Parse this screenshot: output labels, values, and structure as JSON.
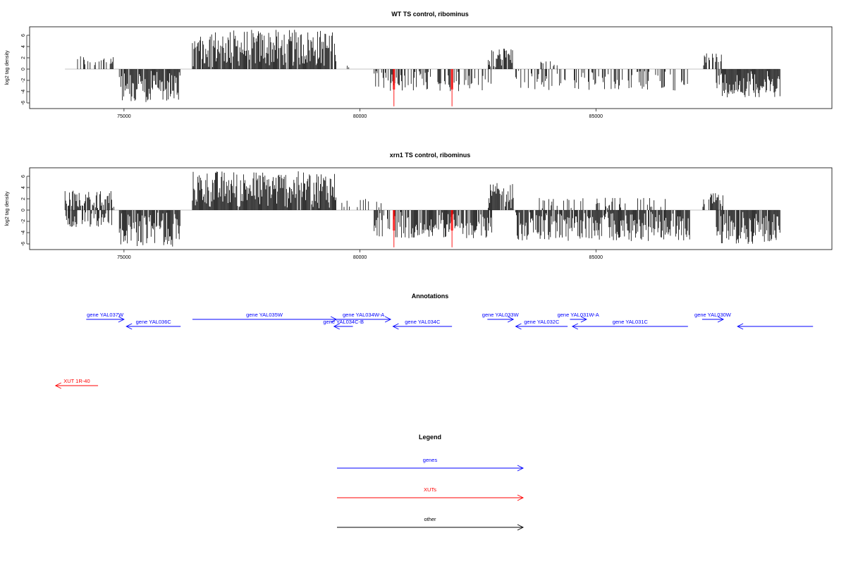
{
  "chart_data": [
    {
      "type": "bar",
      "title": "WT TS control, ribominus",
      "ylabel": "log2 tag density",
      "xlim": [
        73000,
        90000
      ],
      "ylim": [
        -7,
        7.5
      ],
      "xticks": [
        75000,
        80000,
        85000
      ],
      "yticks": [
        -6,
        -4,
        -2,
        0,
        2,
        4,
        6
      ],
      "ytick_labels": [
        "-6",
        "-4",
        "-2",
        "0",
        "2",
        "4",
        "6"
      ],
      "series": [
        {
          "strand": "plus",
          "color": "#000000",
          "segments": [
            {
              "from": 74000,
              "to": 74800,
              "max": 2.5,
              "density": 0.35
            },
            {
              "from": 76450,
              "to": 79500,
              "max": 7,
              "density": 0.95
            },
            {
              "from": 79700,
              "to": 80000,
              "max": 2,
              "density": 0.2
            },
            {
              "from": 82700,
              "to": 83250,
              "max": 4,
              "density": 0.8
            },
            {
              "from": 83800,
              "to": 84300,
              "max": 1.5,
              "density": 0.25
            },
            {
              "from": 87250,
              "to": 87700,
              "max": 2.8,
              "density": 0.7
            }
          ]
        },
        {
          "strand": "minus",
          "color": "#000000",
          "segments": [
            {
              "from": 74900,
              "to": 76200,
              "max": 6,
              "density": 0.9
            },
            {
              "from": 80300,
              "to": 82800,
              "max": 4,
              "density": 0.45
            },
            {
              "from": 83300,
              "to": 87000,
              "max": 3.8,
              "density": 0.3
            },
            {
              "from": 87550,
              "to": 88900,
              "max": 5,
              "density": 0.95
            }
          ]
        }
      ],
      "highlights": [
        {
          "x": 80720,
          "value": -6.6,
          "color": "#ff0000"
        },
        {
          "x": 81950,
          "value": -6.6,
          "color": "#ff0000"
        }
      ]
    },
    {
      "type": "bar",
      "title": "xrn1 TS control, ribominus",
      "ylabel": "log2 tag density",
      "xlim": [
        73000,
        90000
      ],
      "ylim": [
        -7,
        7.5
      ],
      "xticks": [
        75000,
        80000,
        85000
      ],
      "yticks": [
        -6,
        -4,
        -2,
        0,
        2,
        4,
        6
      ],
      "ytick_labels": [
        "-6",
        "-4",
        "-2",
        "0",
        "2",
        "4",
        "6"
      ],
      "series": [
        {
          "strand": "plus",
          "color": "#000000",
          "segments": [
            {
              "from": 73750,
              "to": 74800,
              "max": 3.5,
              "density": 0.8
            },
            {
              "from": 76450,
              "to": 79500,
              "max": 7,
              "density": 0.98
            },
            {
              "from": 79600,
              "to": 80500,
              "max": 2,
              "density": 0.2
            },
            {
              "from": 82700,
              "to": 83250,
              "max": 4.8,
              "density": 0.9
            },
            {
              "from": 83800,
              "to": 86500,
              "max": 2.2,
              "density": 0.2
            },
            {
              "from": 87250,
              "to": 87700,
              "max": 3,
              "density": 0.7
            }
          ]
        },
        {
          "strand": "minus",
          "color": "#000000",
          "segments": [
            {
              "from": 73750,
              "to": 74800,
              "max": 3,
              "density": 0.6
            },
            {
              "from": 74900,
              "to": 76200,
              "max": 6.5,
              "density": 0.95
            },
            {
              "from": 80300,
              "to": 82800,
              "max": 5,
              "density": 0.75
            },
            {
              "from": 83300,
              "to": 87000,
              "max": 5.5,
              "density": 0.9
            },
            {
              "from": 87550,
              "to": 88900,
              "max": 6,
              "density": 0.95
            }
          ]
        }
      ],
      "highlights": [
        {
          "x": 80720,
          "value": -6.6,
          "color": "#ff0000"
        },
        {
          "x": 81950,
          "value": -6.6,
          "color": "#ff0000"
        }
      ]
    }
  ],
  "annotations": {
    "title": "Annotations",
    "genes_color": "#0000ff",
    "xut_color": "#ff0000",
    "items": [
      {
        "label": "gene YAL037W",
        "start": 74200,
        "end": 75000,
        "strand": "+",
        "row": 0,
        "type": "gene"
      },
      {
        "label": "gene YAL036C",
        "start": 75050,
        "end": 76200,
        "strand": "-",
        "row": 1,
        "type": "gene"
      },
      {
        "label": "gene YAL035W",
        "start": 76450,
        "end": 79500,
        "strand": "+",
        "row": 0,
        "type": "gene"
      },
      {
        "label": "gene YAL034W-A",
        "start": 79500,
        "end": 80650,
        "strand": "+",
        "row": 0,
        "type": "gene"
      },
      {
        "label": "gene YAL034C-B",
        "start": 79450,
        "end": 79850,
        "strand": "-",
        "row": 1,
        "type": "gene"
      },
      {
        "label": "gene YAL034C",
        "start": 80700,
        "end": 81950,
        "strand": "-",
        "row": 1,
        "type": "gene"
      },
      {
        "label": "gene YAL033W",
        "start": 82700,
        "end": 83250,
        "strand": "+",
        "row": 0,
        "type": "gene"
      },
      {
        "label": "gene YAL032C",
        "start": 83300,
        "end": 84400,
        "strand": "-",
        "row": 1,
        "type": "gene"
      },
      {
        "label": "gene YAL031W-A",
        "start": 84450,
        "end": 84800,
        "strand": "+",
        "row": 0,
        "type": "gene"
      },
      {
        "label": "gene YAL031C",
        "start": 84500,
        "end": 86950,
        "strand": "-",
        "row": 1,
        "type": "gene"
      },
      {
        "label": "gene YAL030W",
        "start": 87250,
        "end": 87700,
        "strand": "+",
        "row": 0,
        "type": "gene"
      },
      {
        "label": "",
        "start": 88000,
        "end": 89600,
        "strand": "-",
        "row": 1,
        "type": "gene"
      },
      {
        "label": "XUT 1R-40",
        "start": 73550,
        "end": 74450,
        "strand": "-",
        "row": 2,
        "type": "xut"
      }
    ]
  },
  "legend": {
    "title": "Legend",
    "entries": [
      {
        "label": "genes",
        "color": "#0000ff"
      },
      {
        "label": "XUTs",
        "color": "#ff0000"
      },
      {
        "label": "other",
        "color": "#000000"
      }
    ]
  }
}
